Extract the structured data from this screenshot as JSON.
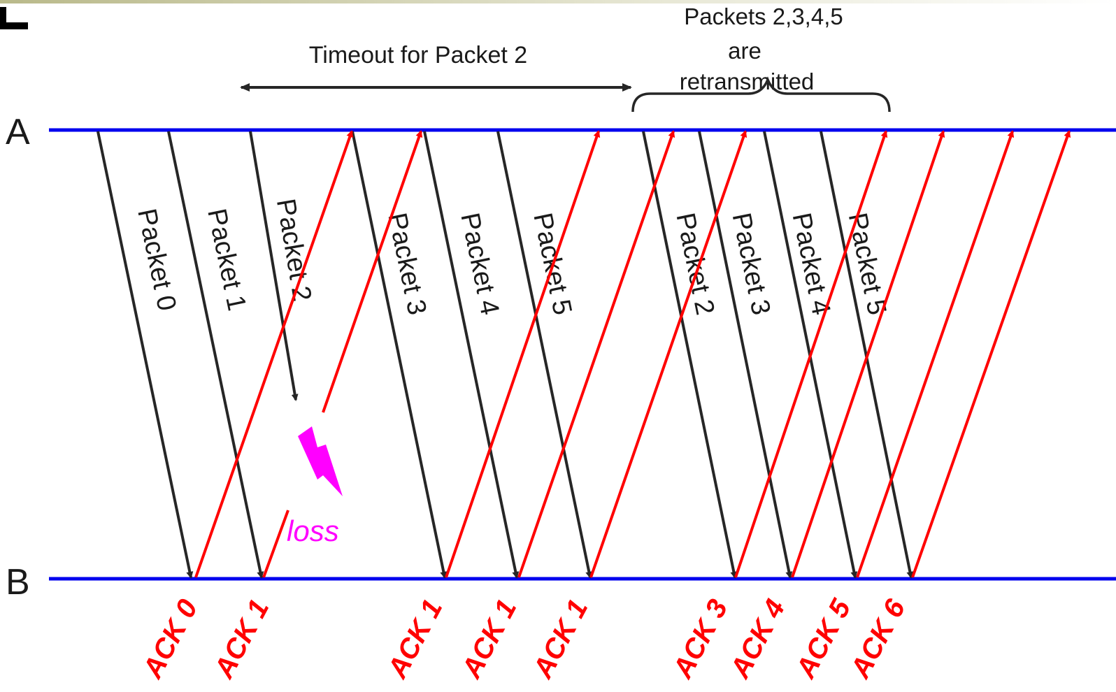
{
  "nodes": {
    "sender_label": "A",
    "receiver_label": "B"
  },
  "annotations": {
    "timeout_label": "Timeout for Packet 2",
    "retransmit_line1": "Packets 2,3,4,5",
    "retransmit_line2": "are",
    "retransmit_line3": "retransmitted",
    "loss_label": "loss"
  },
  "packets": [
    {
      "label": "Packet 0"
    },
    {
      "label": "Packet 1"
    },
    {
      "label": "Packet 2"
    },
    {
      "label": "Packet 3"
    },
    {
      "label": "Packet 4"
    },
    {
      "label": "Packet 5"
    },
    {
      "label": "Packet 2"
    },
    {
      "label": "Packet 3"
    },
    {
      "label": "Packet 4"
    },
    {
      "label": "Packet 5"
    }
  ],
  "acks": [
    {
      "label": "ACK 0"
    },
    {
      "label": "ACK 1"
    },
    {
      "label": "ACK 1"
    },
    {
      "label": "ACK 1"
    },
    {
      "label": "ACK 1"
    },
    {
      "label": "ACK 3"
    },
    {
      "label": "ACK 4"
    },
    {
      "label": "ACK 5"
    },
    {
      "label": "ACK 6"
    }
  ],
  "colors": {
    "timeline": "#0000ee",
    "packet": "#262626",
    "ack": "#ff0000",
    "loss": "#ff00ff",
    "text": "#1a1a1a"
  }
}
